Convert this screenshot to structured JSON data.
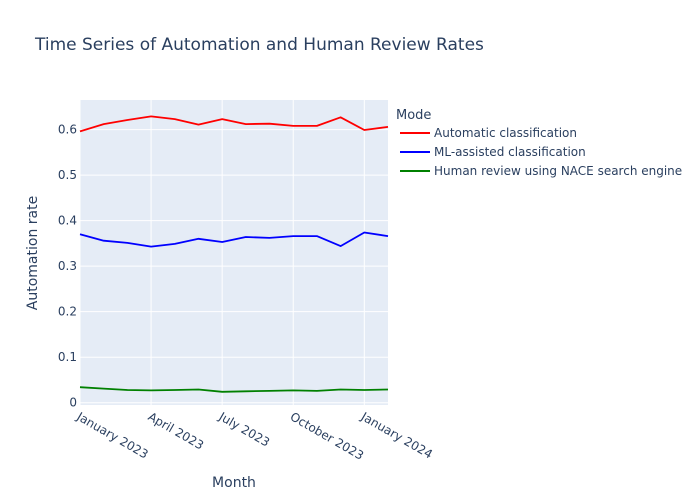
{
  "chart_data": {
    "type": "line",
    "title": "Time Series of Automation and Human Review Rates",
    "xlabel": "Month",
    "ylabel": "Automation rate",
    "ylim": [
      -0.005,
      0.665
    ],
    "x": [
      "2023-01",
      "2023-02",
      "2023-03",
      "2023-04",
      "2023-05",
      "2023-06",
      "2023-07",
      "2023-08",
      "2023-09",
      "2023-10",
      "2023-11",
      "2023-12",
      "2024-01",
      "2024-02"
    ],
    "x_ticks": [
      {
        "month_index": 0,
        "label": "January 2023"
      },
      {
        "month_index": 3,
        "label": "April 2023"
      },
      {
        "month_index": 6,
        "label": "July 2023"
      },
      {
        "month_index": 9,
        "label": "October 2023"
      },
      {
        "month_index": 12,
        "label": "January 2024"
      }
    ],
    "y_ticks": [
      {
        "value": 0,
        "label": "0"
      },
      {
        "value": 0.1,
        "label": "0.1"
      },
      {
        "value": 0.2,
        "label": "0.2"
      },
      {
        "value": 0.3,
        "label": "0.3"
      },
      {
        "value": 0.4,
        "label": "0.4"
      },
      {
        "value": 0.5,
        "label": "0.5"
      },
      {
        "value": 0.6,
        "label": "0.6"
      }
    ],
    "legend_title": "Mode",
    "legend_position": "top-right",
    "series": [
      {
        "name": "Automatic classification",
        "color": "#ff0000",
        "values": [
          0.596,
          0.612,
          0.621,
          0.629,
          0.623,
          0.611,
          0.623,
          0.612,
          0.613,
          0.608,
          0.608,
          0.627,
          0.599,
          0.606
        ]
      },
      {
        "name": "ML-assisted classification",
        "color": "#0000ff",
        "values": [
          0.37,
          0.356,
          0.351,
          0.343,
          0.349,
          0.36,
          0.353,
          0.364,
          0.362,
          0.366,
          0.366,
          0.344,
          0.374,
          0.366
        ]
      },
      {
        "name": "Human review using NACE search engine",
        "color": "#008000",
        "values": [
          0.034,
          0.031,
          0.028,
          0.027,
          0.028,
          0.029,
          0.024,
          0.025,
          0.026,
          0.027,
          0.026,
          0.029,
          0.028,
          0.029
        ]
      }
    ],
    "colors": {
      "plot_bg": "#e5ecf6",
      "grid": "#ffffff",
      "text": "#2a3f5f"
    }
  }
}
